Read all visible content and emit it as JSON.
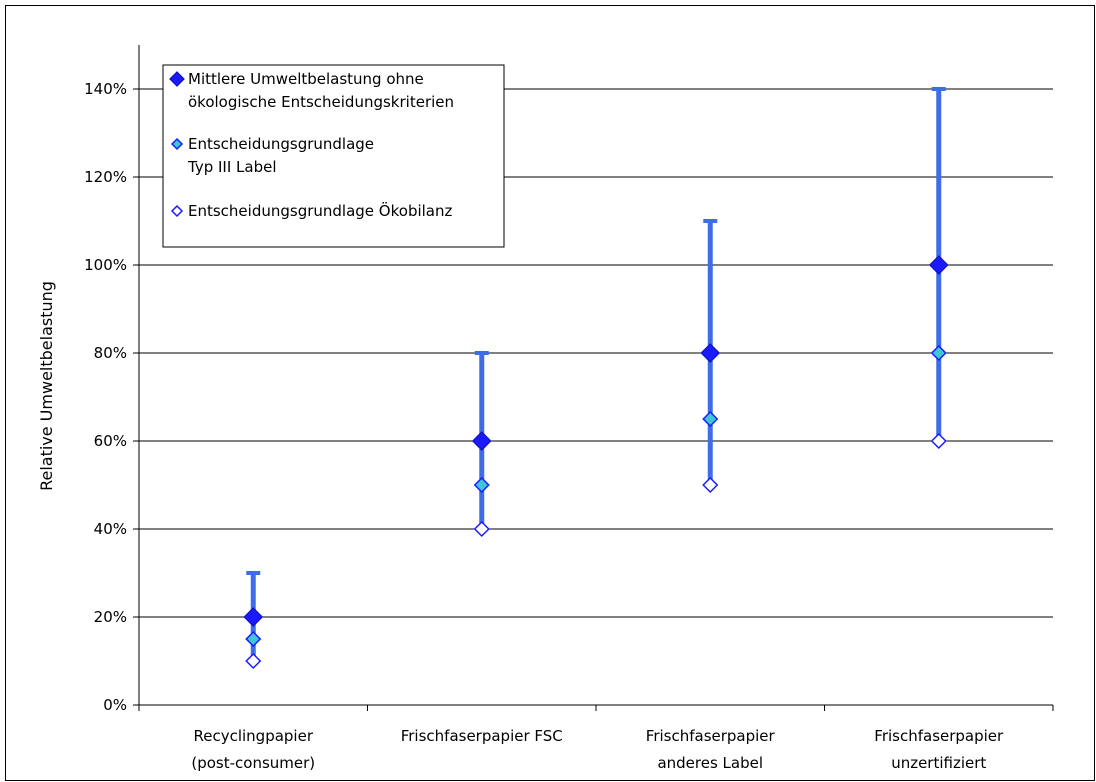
{
  "chart_data": {
    "type": "range",
    "title": "",
    "xlabel": "",
    "ylabel": "Relative Umweltbelastung",
    "ylim": [
      0,
      150
    ],
    "yticks": [
      0,
      20,
      40,
      60,
      80,
      100,
      120,
      140
    ],
    "ytick_labels": [
      "0%",
      "20%",
      "40%",
      "60%",
      "80%",
      "100%",
      "120%",
      "140%"
    ],
    "grid": true,
    "legend_position": "top-left",
    "categories": [
      {
        "line1": "Recyclingpapier",
        "line2": "(post-consumer)"
      },
      {
        "line1": "Frischfaserpapier FSC",
        "line2": ""
      },
      {
        "line1": "Frischfaserpapier",
        "line2": "anderes Label"
      },
      {
        "line1": "Frischfaserpapier",
        "line2": "unzertifiziert"
      }
    ],
    "range": {
      "low": [
        10,
        40,
        50,
        60
      ],
      "high": [
        30,
        80,
        110,
        140
      ],
      "color": "#3d6ee8"
    },
    "series": [
      {
        "name_lines": [
          "Mittlere Umweltbelastung ohne",
          "ökologische Entscheidungskriterien"
        ],
        "marker": "filled-diamond",
        "color": "#1a1aff",
        "values": [
          20,
          60,
          80,
          100
        ]
      },
      {
        "name_lines": [
          "Entscheidungsgrundlage",
          "Typ III Label"
        ],
        "marker": "teal-diamond",
        "color": "#3fc6d6",
        "values": [
          15,
          50,
          65,
          80
        ]
      },
      {
        "name_lines": [
          "Entscheidungsgrundlage Ökobilanz"
        ],
        "marker": "hollow-diamond",
        "color": "#ffffff",
        "values": [
          10,
          40,
          50,
          60
        ]
      }
    ]
  }
}
